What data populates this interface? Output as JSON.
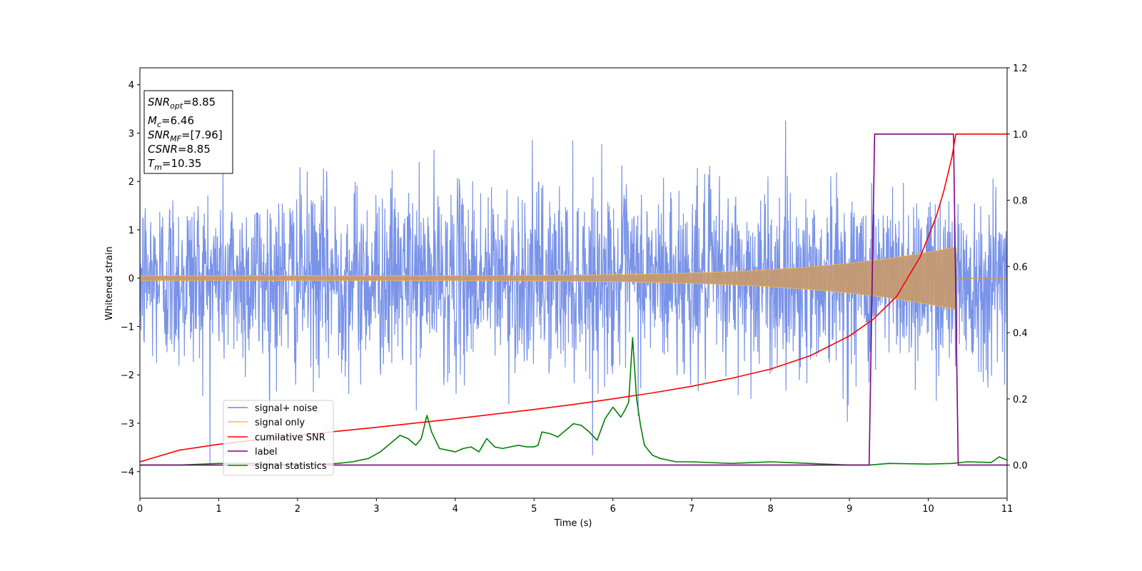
{
  "chart_data": {
    "type": "line",
    "xlabel": "Time (s)",
    "ylabel": "Whitened strain",
    "xlim": [
      0,
      11
    ],
    "ylim": [
      -4.55,
      4.35
    ],
    "y2lim": [
      -0.1,
      1.2
    ],
    "x_ticks": [
      0,
      1,
      2,
      3,
      4,
      5,
      6,
      7,
      8,
      9,
      10,
      11
    ],
    "x_tick_labels": [
      "0",
      "1",
      "2",
      "3",
      "4",
      "5",
      "6",
      "7",
      "8",
      "9",
      "10",
      "11"
    ],
    "y_ticks": [
      -4,
      -3,
      -2,
      -1,
      0,
      1,
      2,
      3,
      4
    ],
    "y_tick_labels": [
      "−4",
      "−3",
      "−2",
      "−1",
      "0",
      "1",
      "2",
      "3",
      "4"
    ],
    "y2_ticks": [
      0.0,
      0.2,
      0.4,
      0.6,
      0.8,
      1.0,
      1.2
    ],
    "y2_tick_labels": [
      "0.0",
      "0.2",
      "0.4",
      "0.6",
      "0.8",
      "1.0",
      "1.2"
    ],
    "grid": false,
    "legend_position": "lower-left",
    "info_box": {
      "snr_opt": {
        "sym": "SNR",
        "sub": "opt",
        "val": "=8.85"
      },
      "mc": {
        "sym": "M",
        "sub": "c",
        "val": "=6.46"
      },
      "snr_mf": {
        "sym": "SNR",
        "sub": "MF",
        "val": "=[7.96]"
      },
      "csnr": {
        "sym": "CSNR",
        "val": "=8.85"
      },
      "tm": {
        "sym": "T",
        "sub": "m",
        "val": "=10.35"
      }
    },
    "series": [
      {
        "name": "signal+ noise",
        "axis": "left",
        "color": "#6a87e6",
        "description_stats": {
          "std": 1.0,
          "approx_range": [
            -4.2,
            3.95
          ]
        }
      },
      {
        "name": "signal only",
        "axis": "left",
        "color": "#f5b94d",
        "chirp": {
          "t_start": 0,
          "t_end": 10.35,
          "amp_start": 0.05,
          "amp_end": 0.65
        }
      },
      {
        "name": "cumilative SNR",
        "axis": "right",
        "color": "#ff0000",
        "x": [
          0,
          0.5,
          1,
          1.5,
          2,
          2.5,
          3,
          3.5,
          4,
          4.5,
          5,
          5.5,
          6,
          6.5,
          7,
          7.5,
          8,
          8.5,
          9,
          9.3,
          9.6,
          9.9,
          10.1,
          10.2,
          10.3,
          10.35,
          11
        ],
        "y": [
          0.01,
          0.045,
          0.063,
          0.077,
          0.09,
          0.102,
          0.114,
          0.127,
          0.14,
          0.154,
          0.168,
          0.183,
          0.2,
          0.218,
          0.238,
          0.262,
          0.29,
          0.33,
          0.39,
          0.44,
          0.51,
          0.63,
          0.75,
          0.83,
          0.93,
          1.0,
          1.0
        ]
      },
      {
        "name": "label",
        "axis": "right",
        "color": "#800080",
        "x": [
          0,
          9.25,
          9.32,
          10.32,
          10.38,
          11
        ],
        "y": [
          0,
          0,
          1,
          1,
          0,
          0
        ]
      },
      {
        "name": "signal statistics",
        "axis": "right",
        "color": "#008000",
        "x": [
          0,
          0.5,
          1,
          1.5,
          2,
          2.5,
          2.7,
          2.9,
          3.05,
          3.2,
          3.3,
          3.4,
          3.5,
          3.57,
          3.64,
          3.7,
          3.8,
          3.9,
          4.0,
          4.1,
          4.2,
          4.3,
          4.35,
          4.4,
          4.5,
          4.6,
          4.7,
          4.8,
          4.9,
          5.0,
          5.05,
          5.1,
          5.2,
          5.3,
          5.4,
          5.5,
          5.6,
          5.7,
          5.8,
          5.9,
          6.0,
          6.05,
          6.1,
          6.15,
          6.2,
          6.25,
          6.3,
          6.35,
          6.4,
          6.5,
          6.6,
          6.8,
          7.0,
          7.5,
          8.0,
          8.5,
          9.0,
          9.25,
          9.5,
          10.0,
          10.3,
          10.5,
          10.8,
          10.9,
          11.0
        ],
        "y": [
          0.0,
          0.0,
          0.005,
          0.005,
          0.0,
          0.005,
          0.01,
          0.02,
          0.04,
          0.07,
          0.09,
          0.08,
          0.06,
          0.08,
          0.15,
          0.1,
          0.05,
          0.045,
          0.04,
          0.05,
          0.055,
          0.04,
          0.06,
          0.08,
          0.055,
          0.05,
          0.055,
          0.06,
          0.055,
          0.055,
          0.06,
          0.1,
          0.095,
          0.085,
          0.105,
          0.125,
          0.12,
          0.1,
          0.075,
          0.14,
          0.175,
          0.16,
          0.145,
          0.165,
          0.19,
          0.385,
          0.2,
          0.12,
          0.06,
          0.03,
          0.02,
          0.01,
          0.01,
          0.005,
          0.01,
          0.005,
          0.0,
          0.0,
          0.005,
          0.003,
          0.005,
          0.01,
          0.008,
          0.025,
          0.015
        ]
      }
    ]
  }
}
